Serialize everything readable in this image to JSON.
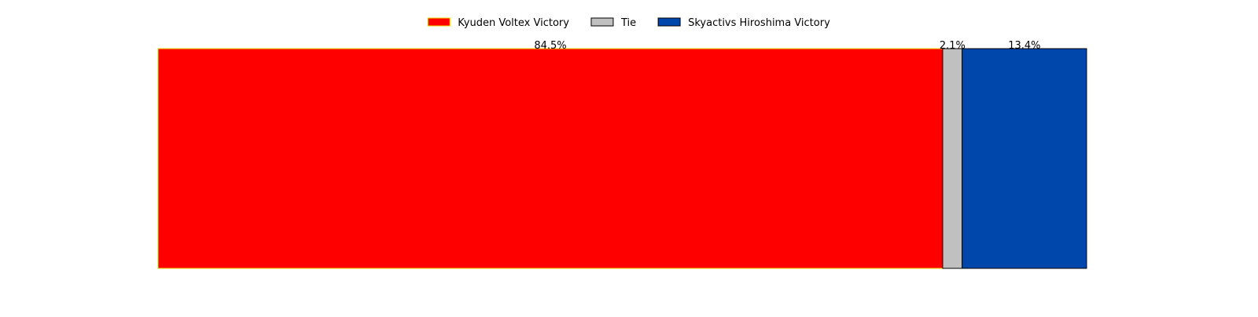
{
  "chart_data": {
    "type": "bar",
    "orientation": "horizontal-stacked",
    "title": "",
    "xlabel": "",
    "ylabel": "",
    "grid": false,
    "legend_position": "top-center",
    "axes_visible": false,
    "xlim": [
      0,
      100
    ],
    "series": [
      {
        "name": "Kyuden Voltex Victory",
        "value": 84.5,
        "label": "84.5%",
        "fill": "#ff0000",
        "edge": "#e8d800"
      },
      {
        "name": "Tie",
        "value": 2.1,
        "label": "2.1%",
        "fill": "#c0c0c0",
        "edge": "#000000"
      },
      {
        "name": "Skyactivs Hiroshima Victory",
        "value": 13.4,
        "label": "13.4%",
        "fill": "#0047ab",
        "edge": "#000000"
      }
    ]
  }
}
